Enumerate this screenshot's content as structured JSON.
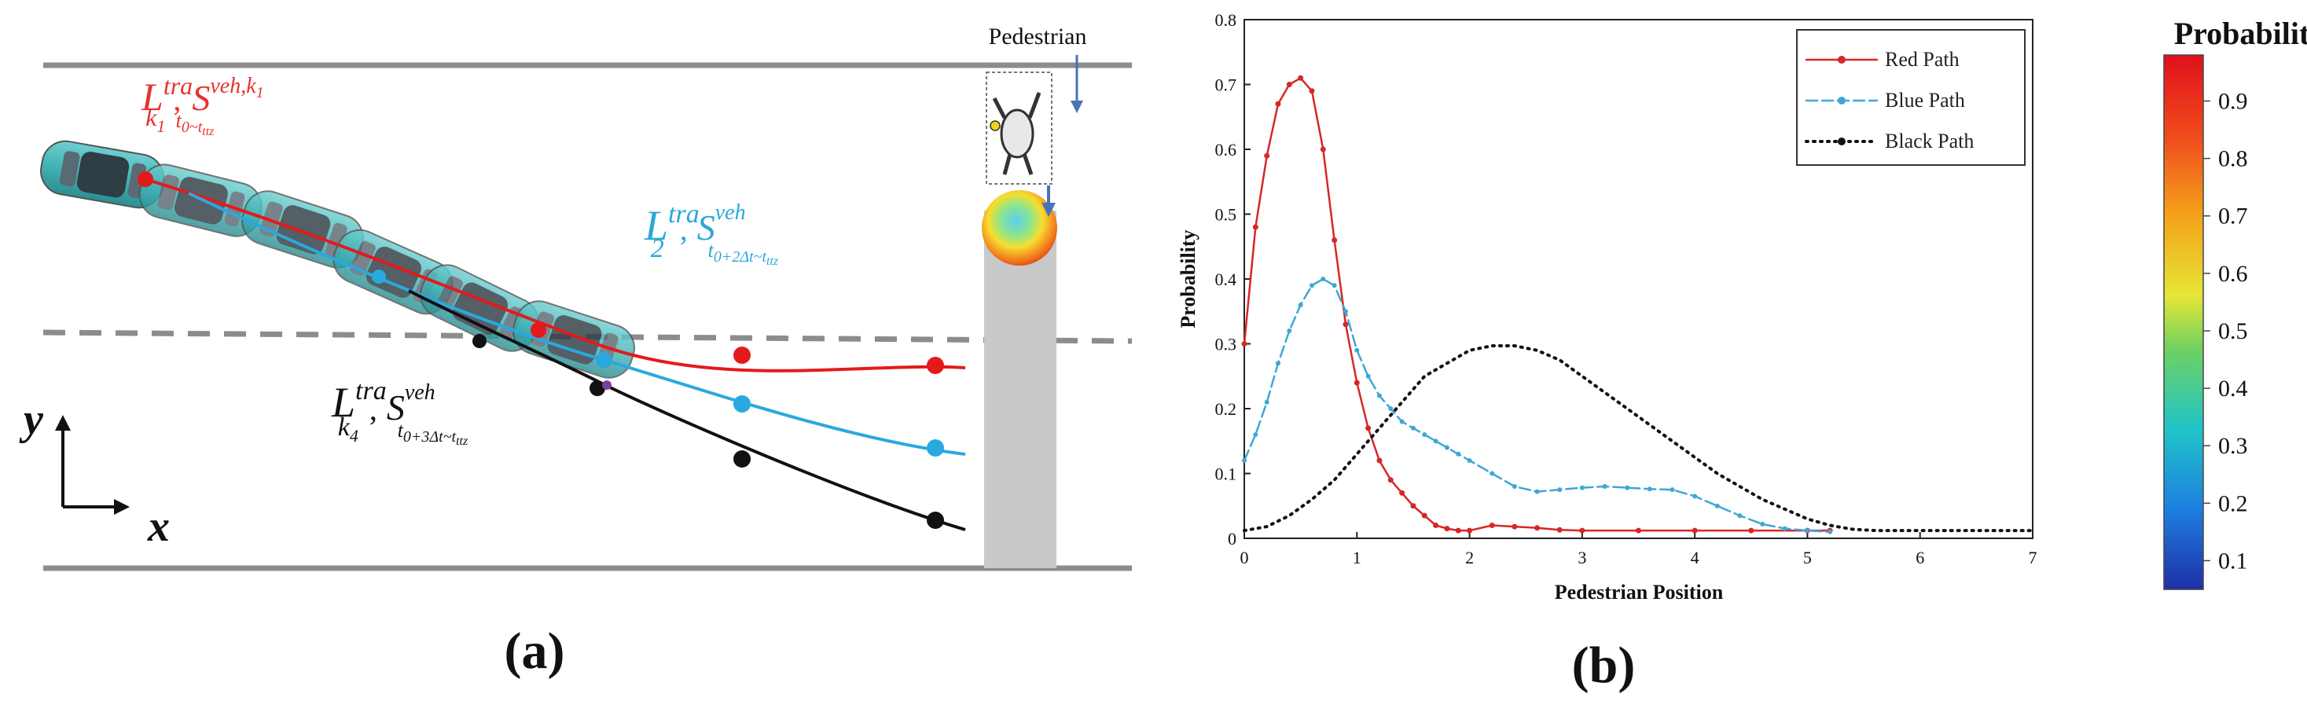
{
  "panel_a": {
    "caption": "(a)",
    "pedestrian_label": "Pedestrian",
    "axis_x": "x",
    "axis_y": "y",
    "label_red": {
      "base": "L",
      "sup": "tra",
      "sub": "k",
      "sub_sub": "1",
      "sep": ",",
      "s": "S",
      "s_sup": "veh,k",
      "s_sup_sub": "1",
      "s_sub": "t",
      "s_sub_rest": "0~t",
      "s_sub_tail": "ttz"
    },
    "label_blue": {
      "base": "L",
      "sup": "tra",
      "sub": "2",
      "sep": ",",
      "s": "S",
      "s_sup": "veh",
      "s_sub": "t",
      "s_sub_rest": "0+2Δt~t",
      "s_sub_tail": "ttz"
    },
    "label_black": {
      "base": "L",
      "sup": "tra",
      "sub": "k",
      "sub_sub": "4",
      "sep": ",",
      "s": "S",
      "s_sup": "veh",
      "s_sub": "t",
      "s_sub_rest": "0+3Δt~t",
      "s_sub_tail": "ttz"
    },
    "colors": {
      "red": "#e31a1c",
      "blue": "#29a9de",
      "black": "#111111",
      "label_red": "#e8322e",
      "label_blue": "#2aa8d8"
    }
  },
  "panel_b": {
    "caption": "(b)"
  },
  "colorbar": {
    "title": "Probability",
    "tick_labels": [
      "0.9",
      "0.8",
      "0.7",
      "0.6",
      "0.5",
      "0.4",
      "0.3",
      "0.2",
      "0.1"
    ],
    "tick_values": [
      0.9,
      0.8,
      0.7,
      0.6,
      0.5,
      0.4,
      0.3,
      0.2,
      0.1
    ]
  },
  "chart_data": {
    "type": "line",
    "xlabel": "Pedestrian Position",
    "ylabel": "Probability",
    "xlim": [
      0,
      7
    ],
    "ylim": [
      0,
      0.8
    ],
    "xticks": [
      "0",
      "1",
      "2",
      "3",
      "4",
      "5",
      "6",
      "7"
    ],
    "yticks": [
      "0",
      "0.1",
      "0.2",
      "0.3",
      "0.4",
      "0.5",
      "0.6",
      "0.7",
      "0.8"
    ],
    "legend_position": "top-right",
    "series": [
      {
        "name": "Red Path",
        "color": "#d62728",
        "style": "solid-dot",
        "x": [
          0,
          0.1,
          0.2,
          0.3,
          0.4,
          0.5,
          0.6,
          0.7,
          0.8,
          0.9,
          1.0,
          1.1,
          1.2,
          1.3,
          1.4,
          1.5,
          1.6,
          1.7,
          1.8,
          1.9,
          2.0,
          2.2,
          2.4,
          2.6,
          2.8,
          3.0,
          3.5,
          4.0,
          4.5,
          5.0,
          5.2
        ],
        "y": [
          0.3,
          0.48,
          0.59,
          0.67,
          0.7,
          0.71,
          0.69,
          0.6,
          0.46,
          0.33,
          0.24,
          0.17,
          0.12,
          0.09,
          0.07,
          0.05,
          0.035,
          0.02,
          0.015,
          0.012,
          0.012,
          0.02,
          0.018,
          0.016,
          0.013,
          0.012,
          0.012,
          0.012,
          0.012,
          0.012,
          0.012
        ]
      },
      {
        "name": "Blue Path",
        "color": "#3fa7d6",
        "style": "dash-dot",
        "x": [
          0,
          0.1,
          0.2,
          0.3,
          0.4,
          0.5,
          0.6,
          0.7,
          0.8,
          0.9,
          1.0,
          1.1,
          1.2,
          1.3,
          1.4,
          1.5,
          1.6,
          1.7,
          1.8,
          1.9,
          2.0,
          2.2,
          2.4,
          2.6,
          2.8,
          3.0,
          3.2,
          3.4,
          3.6,
          3.8,
          4.0,
          4.2,
          4.4,
          4.6,
          4.8,
          5.0,
          5.2
        ],
        "y": [
          0.12,
          0.16,
          0.21,
          0.27,
          0.32,
          0.36,
          0.39,
          0.4,
          0.39,
          0.35,
          0.29,
          0.25,
          0.22,
          0.2,
          0.18,
          0.17,
          0.16,
          0.15,
          0.14,
          0.13,
          0.12,
          0.1,
          0.08,
          0.072,
          0.075,
          0.078,
          0.08,
          0.078,
          0.076,
          0.075,
          0.065,
          0.05,
          0.035,
          0.022,
          0.015,
          0.012,
          0.01
        ]
      },
      {
        "name": "Black Path",
        "color": "#111111",
        "style": "dotted",
        "x": [
          0,
          0.2,
          0.4,
          0.6,
          0.8,
          1.0,
          1.2,
          1.4,
          1.6,
          1.8,
          2.0,
          2.2,
          2.4,
          2.6,
          2.8,
          3.0,
          3.2,
          3.4,
          3.6,
          3.8,
          4.0,
          4.2,
          4.4,
          4.6,
          4.8,
          5.0,
          5.2,
          5.4,
          5.6,
          5.8,
          6.0,
          6.2,
          6.4,
          6.6,
          6.8,
          7.0
        ],
        "y": [
          0.012,
          0.018,
          0.035,
          0.06,
          0.09,
          0.13,
          0.17,
          0.21,
          0.25,
          0.27,
          0.29,
          0.297,
          0.297,
          0.29,
          0.275,
          0.25,
          0.225,
          0.2,
          0.175,
          0.15,
          0.125,
          0.1,
          0.08,
          0.06,
          0.045,
          0.03,
          0.02,
          0.014,
          0.012,
          0.012,
          0.012,
          0.012,
          0.012,
          0.012,
          0.012,
          0.012
        ]
      }
    ]
  }
}
